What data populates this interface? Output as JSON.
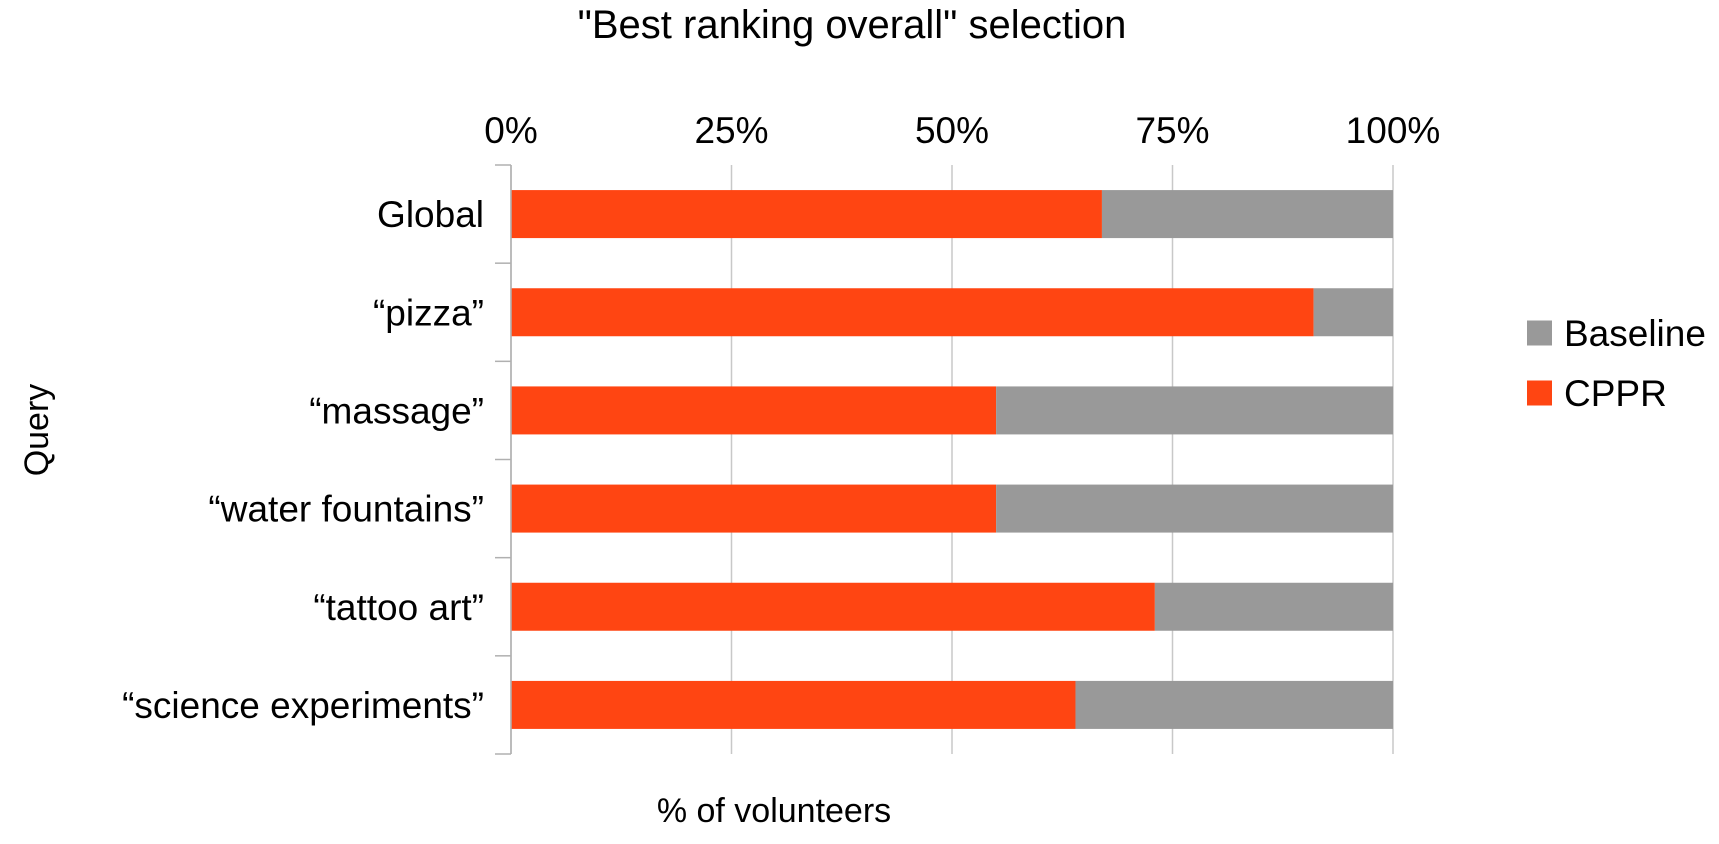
{
  "chart_data": {
    "type": "bar",
    "orientation": "horizontal",
    "stacked": true,
    "title": "\"Best ranking overall\" selection",
    "xlabel": "% of volunteers",
    "ylabel": "Query",
    "xlim": [
      0,
      100
    ],
    "x_ticks": [
      "0%",
      "25%",
      "50%",
      "75%",
      "100%"
    ],
    "x_axis_position": "top",
    "grid": true,
    "legend_position": "right",
    "categories": [
      "Global",
      "“pizza”",
      "“massage”",
      "“water fountains”",
      "“tattoo art”",
      "“science experiments”"
    ],
    "series": [
      {
        "name": "CPPR",
        "color": "#ff4512",
        "values": [
          67,
          91,
          55,
          55,
          73,
          64
        ]
      },
      {
        "name": "Baseline",
        "color": "#999999",
        "values": [
          33,
          9,
          45,
          45,
          27,
          36
        ]
      }
    ],
    "legend": [
      {
        "name": "Baseline",
        "color": "#999999"
      },
      {
        "name": "CPPR",
        "color": "#ff4512"
      }
    ]
  }
}
